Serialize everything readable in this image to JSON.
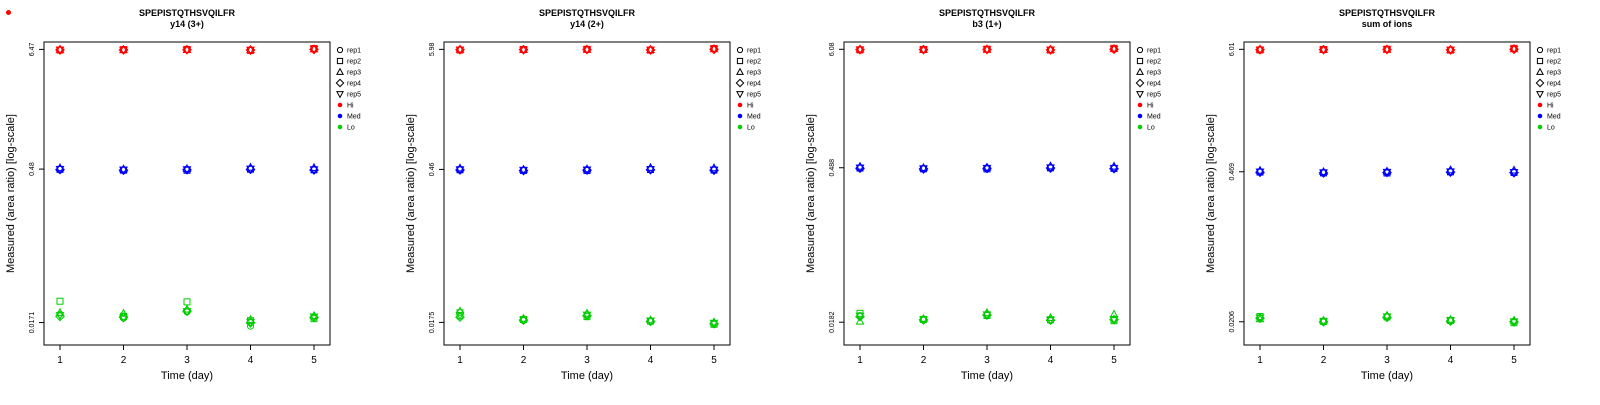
{
  "page": {
    "background": "#ffffff"
  },
  "colors": {
    "hi": "#FF0000",
    "med": "#0000FF",
    "lo": "#00CC00",
    "axis": "#000000"
  },
  "legend": {
    "reps": [
      {
        "label": "rep1",
        "marker": "circle"
      },
      {
        "label": "rep2",
        "marker": "square"
      },
      {
        "label": "rep3",
        "marker": "triangle-up"
      },
      {
        "label": "rep4",
        "marker": "diamond"
      },
      {
        "label": "rep5",
        "marker": "triangle-down"
      }
    ],
    "levels": [
      {
        "label": "Hi",
        "color": "#FF0000"
      },
      {
        "label": "Med",
        "color": "#0000FF"
      },
      {
        "label": "Lo",
        "color": "#00CC00"
      }
    ]
  },
  "chart_data": [
    {
      "type": "scatter",
      "title": "SPEPISTQTHSVQILFR",
      "subtitle": "y14 (3+)",
      "xlabel": "Time (day)",
      "ylabel": "Measured (area ratio) [log-scale]",
      "x_ticks": [
        1,
        2,
        3,
        4,
        5
      ],
      "y_ticks": [
        6.47,
        0.48,
        0.0171
      ],
      "y_tick_labels": [
        "6.47",
        "0.48",
        "0.0171"
      ],
      "ylim": [
        0.0105,
        7.6
      ],
      "legend_position": "right",
      "grid": false,
      "levels": [
        {
          "name": "Hi",
          "color": "#FF0000",
          "reps": [
            [
              6.42,
              6.4,
              6.43,
              6.36,
              6.55
            ],
            [
              6.38,
              6.44,
              6.47,
              6.33,
              6.6
            ],
            [
              6.45,
              6.39,
              6.41,
              6.4,
              6.5
            ],
            [
              6.4,
              6.41,
              6.44,
              6.38,
              6.47
            ],
            [
              6.41,
              6.4,
              6.42,
              6.39,
              6.52
            ]
          ]
        },
        {
          "name": "Med",
          "color": "#0000FF",
          "reps": [
            [
              0.481,
              0.474,
              0.479,
              0.483,
              0.477
            ],
            [
              0.477,
              0.469,
              0.468,
              0.479,
              0.473
            ],
            [
              0.492,
              0.479,
              0.484,
              0.497,
              0.494
            ],
            [
              0.475,
              0.468,
              0.473,
              0.477,
              0.471
            ],
            [
              0.479,
              0.472,
              0.477,
              0.481,
              0.475
            ]
          ]
        },
        {
          "name": "Lo",
          "color": "#00CC00",
          "reps": [
            [
              0.0205,
              0.0188,
              0.0215,
              0.0158,
              0.019
            ],
            [
              0.0272,
              0.0196,
              0.0268,
              0.0178,
              0.0186
            ],
            [
              0.0212,
              0.0208,
              0.0228,
              0.0182,
              0.0198
            ],
            [
              0.0195,
              0.0192,
              0.022,
              0.017,
              0.0192
            ],
            [
              0.02,
              0.019,
              0.0218,
              0.0172,
              0.0194
            ]
          ]
        }
      ]
    },
    {
      "type": "scatter",
      "title": "SPEPISTQTHSVQILFR",
      "subtitle": "y14 (2+)",
      "xlabel": "Time (day)",
      "ylabel": "Measured (area ratio) [log-scale]",
      "x_ticks": [
        1,
        2,
        3,
        4,
        5
      ],
      "y_ticks": [
        5.98,
        0.46,
        0.0175
      ],
      "y_tick_labels": [
        "5.98",
        "0.46",
        "0.0175"
      ],
      "ylim": [
        0.0108,
        7.0
      ],
      "legend_position": "right",
      "grid": false,
      "levels": [
        {
          "name": "Hi",
          "color": "#FF0000",
          "reps": [
            [
              5.95,
              5.93,
              5.97,
              5.9,
              6.05
            ],
            [
              5.9,
              5.96,
              5.99,
              5.88,
              6.1
            ],
            [
              5.97,
              5.92,
              5.95,
              5.93,
              6.02
            ],
            [
              5.93,
              5.94,
              5.96,
              5.91,
              5.99
            ],
            [
              5.94,
              5.93,
              5.96,
              5.92,
              6.03
            ]
          ]
        },
        {
          "name": "Med",
          "color": "#0000FF",
          "reps": [
            [
              0.461,
              0.455,
              0.459,
              0.463,
              0.458
            ],
            [
              0.457,
              0.45,
              0.449,
              0.459,
              0.454
            ],
            [
              0.472,
              0.459,
              0.464,
              0.477,
              0.474
            ],
            [
              0.455,
              0.449,
              0.453,
              0.457,
              0.452
            ],
            [
              0.459,
              0.453,
              0.457,
              0.461,
              0.456
            ]
          ]
        },
        {
          "name": "Lo",
          "color": "#00CC00",
          "reps": [
            [
              0.02,
              0.0182,
              0.0205,
              0.0178,
              0.0172
            ],
            [
              0.0215,
              0.0186,
              0.0198,
              0.018,
              0.0168
            ],
            [
              0.0222,
              0.019,
              0.0212,
              0.0184,
              0.0176
            ],
            [
              0.0196,
              0.0184,
              0.0202,
              0.0179,
              0.017
            ],
            [
              0.0204,
              0.0185,
              0.0206,
              0.0181,
              0.0173
            ]
          ]
        }
      ]
    },
    {
      "type": "scatter",
      "title": "SPEPISTQTHSVQILFR",
      "subtitle": "b3 (1+)",
      "xlabel": "Time (day)",
      "ylabel": "Measured (area ratio) [log-scale]",
      "x_ticks": [
        1,
        2,
        3,
        4,
        5
      ],
      "y_ticks": [
        6.08,
        0.488,
        0.0182
      ],
      "y_tick_labels": [
        "6.08",
        "0.488",
        "0.0182"
      ],
      "ylim": [
        0.0112,
        7.1
      ],
      "legend_position": "right",
      "grid": false,
      "levels": [
        {
          "name": "Hi",
          "color": "#FF0000",
          "reps": [
            [
              6.05,
              6.03,
              6.07,
              6.0,
              6.15
            ],
            [
              6.0,
              6.06,
              6.09,
              5.98,
              6.2
            ],
            [
              6.07,
              6.02,
              6.05,
              6.03,
              6.12
            ],
            [
              6.03,
              6.04,
              6.06,
              6.01,
              6.09
            ],
            [
              6.04,
              6.03,
              6.06,
              6.02,
              6.13
            ]
          ]
        },
        {
          "name": "Med",
          "color": "#0000FF",
          "reps": [
            [
              0.489,
              0.482,
              0.487,
              0.491,
              0.486
            ],
            [
              0.485,
              0.477,
              0.476,
              0.487,
              0.481
            ],
            [
              0.5,
              0.487,
              0.492,
              0.505,
              0.502
            ],
            [
              0.483,
              0.476,
              0.481,
              0.485,
              0.479
            ],
            [
              0.487,
              0.48,
              0.485,
              0.489,
              0.483
            ]
          ]
        },
        {
          "name": "Lo",
          "color": "#00CC00",
          "reps": [
            [
              0.021,
              0.019,
              0.0215,
              0.0188,
              0.0195
            ],
            [
              0.022,
              0.0193,
              0.021,
              0.0192,
              0.0188
            ],
            [
              0.0185,
              0.0196,
              0.0222,
              0.02,
              0.0215
            ],
            [
              0.0205,
              0.0191,
              0.0212,
              0.019,
              0.0192
            ],
            [
              0.0208,
              0.0192,
              0.0214,
              0.0191,
              0.0194
            ]
          ]
        }
      ]
    },
    {
      "type": "scatter",
      "title": "SPEPISTQTHSVQILFR",
      "subtitle": "sum of ions",
      "xlabel": "Time (day)",
      "ylabel": "Measured (area ratio) [log-scale]",
      "x_ticks": [
        1,
        2,
        3,
        4,
        5
      ],
      "y_ticks": [
        6.01,
        0.469,
        0.0206
      ],
      "y_tick_labels": [
        "6.01",
        "0.469",
        "0.0206"
      ],
      "ylim": [
        0.0127,
        7.0
      ],
      "legend_position": "right",
      "grid": false,
      "levels": [
        {
          "name": "Hi",
          "color": "#FF0000",
          "reps": [
            [
              5.98,
              5.96,
              6.0,
              5.93,
              6.08
            ],
            [
              5.93,
              5.99,
              6.02,
              5.91,
              6.13
            ],
            [
              6.0,
              5.95,
              5.98,
              5.96,
              6.05
            ],
            [
              5.96,
              5.97,
              5.99,
              5.94,
              6.02
            ],
            [
              5.97,
              5.96,
              5.99,
              5.95,
              6.06
            ]
          ]
        },
        {
          "name": "Med",
          "color": "#0000FF",
          "reps": [
            [
              0.47,
              0.463,
              0.468,
              0.472,
              0.467
            ],
            [
              0.466,
              0.458,
              0.457,
              0.468,
              0.462
            ],
            [
              0.481,
              0.468,
              0.473,
              0.486,
              0.483
            ],
            [
              0.464,
              0.457,
              0.462,
              0.466,
              0.46
            ],
            [
              0.468,
              0.461,
              0.466,
              0.47,
              0.464
            ]
          ]
        },
        {
          "name": "Lo",
          "color": "#00CC00",
          "reps": [
            [
              0.0225,
              0.0205,
              0.023,
              0.021,
              0.0208
            ],
            [
              0.023,
              0.0208,
              0.0228,
              0.0212,
              0.0202
            ],
            [
              0.0218,
              0.0212,
              0.0235,
              0.0215,
              0.0212
            ],
            [
              0.0222,
              0.0206,
              0.0226,
              0.0209,
              0.0206
            ],
            [
              0.0224,
              0.0207,
              0.0229,
              0.0211,
              0.0207
            ]
          ]
        }
      ]
    }
  ]
}
